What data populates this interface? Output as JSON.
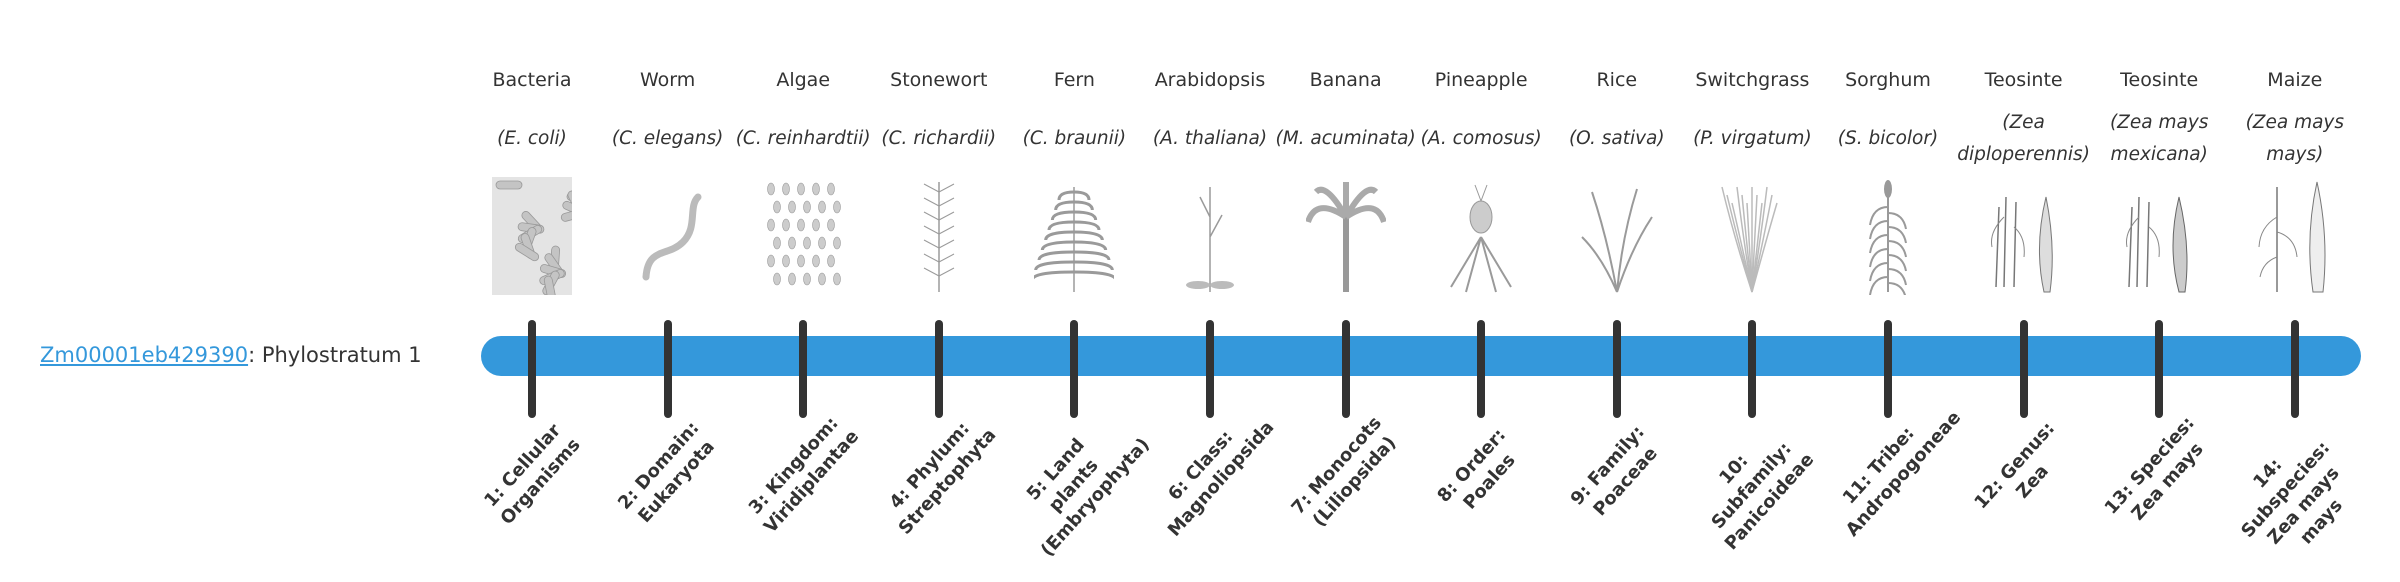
{
  "gene": {
    "id": "Zm00001eb429390",
    "suffix": ": Phylostratum 1"
  },
  "colors": {
    "bar": "#3498db",
    "tick": "#333333",
    "link": "#3498db"
  },
  "strata": [
    {
      "common": "Bacteria",
      "scientific": "(E. coli)",
      "label": "1: Cellular Organisms",
      "icon": "bacteria-illustration"
    },
    {
      "common": "Worm",
      "scientific": "(C. elegans)",
      "label": "2: Domain: Eukaryota",
      "icon": "worm-illustration"
    },
    {
      "common": "Algae",
      "scientific": "(C. reinhardtii)",
      "label": "3: Kingdom: Viridiplantae",
      "icon": "algae-illustration"
    },
    {
      "common": "Stonewort",
      "scientific": "(C. richardii)",
      "label": "4: Phylum: Streptophyta",
      "icon": "stonewort-illustration"
    },
    {
      "common": "Fern",
      "scientific": "(C. braunii)",
      "label": "5: Land plants (Embryophyta)",
      "icon": "fern-illustration"
    },
    {
      "common": "Arabidopsis",
      "scientific": "(A. thaliana)",
      "label": "6: Class: Magnoliopsida",
      "icon": "arabidopsis-illustration"
    },
    {
      "common": "Banana",
      "scientific": "(M. acuminata)",
      "label": "7: Monocots (Liliopsida)",
      "icon": "banana-illustration"
    },
    {
      "common": "Pineapple",
      "scientific": "(A. comosus)",
      "label": "8: Order: Poales",
      "icon": "pineapple-illustration"
    },
    {
      "common": "Rice",
      "scientific": "(O. sativa)",
      "label": "9: Family: Poaceae",
      "icon": "rice-illustration"
    },
    {
      "common": "Switchgrass",
      "scientific": "(P. virgatum)",
      "label": "10: Subfamily: Panicoideae",
      "icon": "switchgrass-illustration"
    },
    {
      "common": "Sorghum",
      "scientific": "(S. bicolor)",
      "label": "11: Tribe: Andropogoneae",
      "icon": "sorghum-illustration"
    },
    {
      "common": "Teosinte",
      "scientific": "(Zea diploperennis)",
      "label": "12: Genus: Zea",
      "icon": "teosinte-illustration"
    },
    {
      "common": "Teosinte",
      "scientific": "(Zea mays mexicana)",
      "label": "13: Species: Zea mays",
      "icon": "teosinte-illustration"
    },
    {
      "common": "Maize",
      "scientific": "(Zea mays mays)",
      "label": "14: Subspecies: Zea mays mays",
      "icon": "maize-illustration"
    }
  ]
}
